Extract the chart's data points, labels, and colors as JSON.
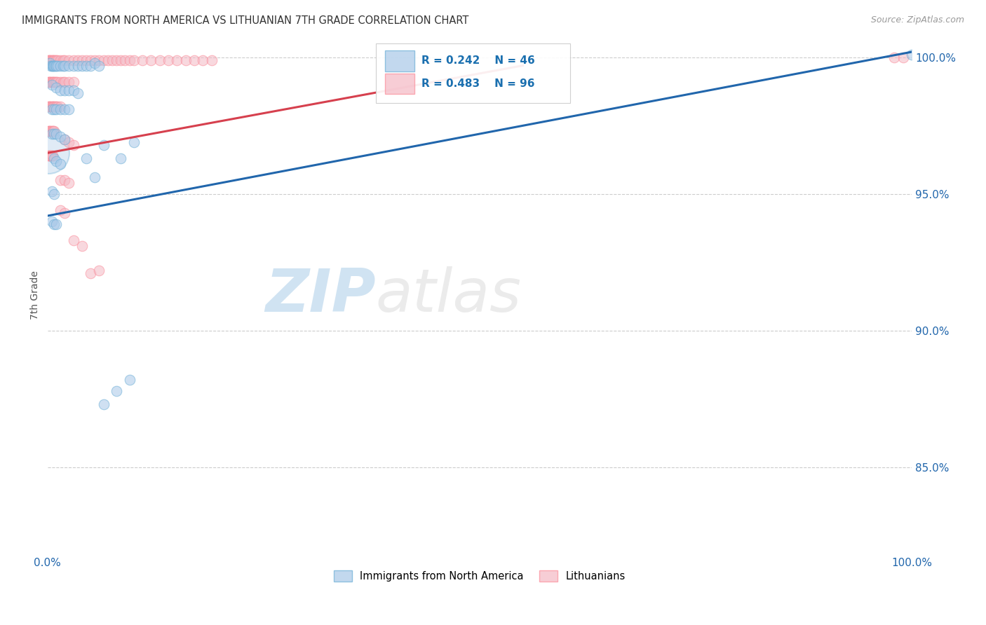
{
  "title": "IMMIGRANTS FROM NORTH AMERICA VS LITHUANIAN 7TH GRADE CORRELATION CHART",
  "source": "Source: ZipAtlas.com",
  "ylabel": "7th Grade",
  "legend_label_blue": "Immigrants from North America",
  "legend_label_pink": "Lithuanians",
  "R_blue": 0.242,
  "N_blue": 46,
  "R_pink": 0.483,
  "N_pink": 96,
  "blue_color": "#a8c8e8",
  "blue_edge_color": "#6baed6",
  "pink_color": "#f4b8c4",
  "pink_edge_color": "#fc8d9a",
  "blue_line_color": "#2166ac",
  "pink_line_color": "#d6404e",
  "watermark_zip": "ZIP",
  "watermark_atlas": "atlas",
  "watermark_color": "#deeaf5",
  "xlim": [
    0.0,
    1.0
  ],
  "ylim": [
    0.818,
    1.008
  ],
  "y_ticks": [
    0.85,
    0.9,
    0.95,
    1.0
  ],
  "y_tick_labels": [
    "85.0%",
    "90.0%",
    "95.0%",
    "100.0%"
  ],
  "x_tick_labels_left": "0.0%",
  "x_tick_labels_right": "100.0%",
  "blue_line_x": [
    0.0,
    1.0
  ],
  "blue_line_y": [
    0.942,
    1.002
  ],
  "pink_line_x": [
    0.0,
    0.55
  ],
  "pink_line_y": [
    0.965,
    0.997
  ],
  "blue_points": [
    [
      0.003,
      0.998
    ],
    [
      0.004,
      0.997
    ],
    [
      0.005,
      0.997
    ],
    [
      0.006,
      0.997
    ],
    [
      0.007,
      0.997
    ],
    [
      0.008,
      0.997
    ],
    [
      0.009,
      0.997
    ],
    [
      0.01,
      0.997
    ],
    [
      0.012,
      0.997
    ],
    [
      0.015,
      0.997
    ],
    [
      0.018,
      0.997
    ],
    [
      0.02,
      0.997
    ],
    [
      0.025,
      0.997
    ],
    [
      0.03,
      0.997
    ],
    [
      0.035,
      0.997
    ],
    [
      0.04,
      0.997
    ],
    [
      0.045,
      0.997
    ],
    [
      0.05,
      0.997
    ],
    [
      0.055,
      0.998
    ],
    [
      0.06,
      0.997
    ],
    [
      0.005,
      0.99
    ],
    [
      0.01,
      0.989
    ],
    [
      0.015,
      0.988
    ],
    [
      0.02,
      0.988
    ],
    [
      0.025,
      0.988
    ],
    [
      0.03,
      0.988
    ],
    [
      0.035,
      0.987
    ],
    [
      0.005,
      0.981
    ],
    [
      0.008,
      0.981
    ],
    [
      0.01,
      0.981
    ],
    [
      0.015,
      0.981
    ],
    [
      0.02,
      0.981
    ],
    [
      0.025,
      0.981
    ],
    [
      0.005,
      0.972
    ],
    [
      0.008,
      0.972
    ],
    [
      0.01,
      0.972
    ],
    [
      0.015,
      0.971
    ],
    [
      0.02,
      0.97
    ],
    [
      0.008,
      0.963
    ],
    [
      0.01,
      0.962
    ],
    [
      0.015,
      0.961
    ],
    [
      0.005,
      0.951
    ],
    [
      0.008,
      0.95
    ],
    [
      0.005,
      0.94
    ],
    [
      0.008,
      0.939
    ],
    [
      0.01,
      0.939
    ],
    [
      1.0,
      1.001
    ]
  ],
  "blue_points_isolated": [
    [
      0.045,
      0.963
    ],
    [
      0.085,
      0.963
    ],
    [
      0.055,
      0.956
    ],
    [
      0.065,
      0.968
    ],
    [
      0.1,
      0.969
    ],
    [
      0.08,
      0.878
    ],
    [
      0.095,
      0.882
    ],
    [
      0.065,
      0.873
    ]
  ],
  "blue_large_circle": [
    0.001,
    0.965
  ],
  "pink_points": [
    [
      0.001,
      0.999
    ],
    [
      0.002,
      0.999
    ],
    [
      0.003,
      0.999
    ],
    [
      0.004,
      0.999
    ],
    [
      0.005,
      0.999
    ],
    [
      0.006,
      0.999
    ],
    [
      0.007,
      0.999
    ],
    [
      0.008,
      0.999
    ],
    [
      0.009,
      0.999
    ],
    [
      0.01,
      0.999
    ],
    [
      0.012,
      0.999
    ],
    [
      0.015,
      0.999
    ],
    [
      0.018,
      0.999
    ],
    [
      0.02,
      0.999
    ],
    [
      0.025,
      0.999
    ],
    [
      0.03,
      0.999
    ],
    [
      0.035,
      0.999
    ],
    [
      0.04,
      0.999
    ],
    [
      0.045,
      0.999
    ],
    [
      0.05,
      0.999
    ],
    [
      0.055,
      0.999
    ],
    [
      0.06,
      0.999
    ],
    [
      0.065,
      0.999
    ],
    [
      0.07,
      0.999
    ],
    [
      0.075,
      0.999
    ],
    [
      0.08,
      0.999
    ],
    [
      0.085,
      0.999
    ],
    [
      0.09,
      0.999
    ],
    [
      0.095,
      0.999
    ],
    [
      0.1,
      0.999
    ],
    [
      0.11,
      0.999
    ],
    [
      0.12,
      0.999
    ],
    [
      0.13,
      0.999
    ],
    [
      0.14,
      0.999
    ],
    [
      0.15,
      0.999
    ],
    [
      0.16,
      0.999
    ],
    [
      0.17,
      0.999
    ],
    [
      0.18,
      0.999
    ],
    [
      0.19,
      0.999
    ],
    [
      0.001,
      0.991
    ],
    [
      0.002,
      0.991
    ],
    [
      0.003,
      0.991
    ],
    [
      0.004,
      0.991
    ],
    [
      0.005,
      0.991
    ],
    [
      0.006,
      0.991
    ],
    [
      0.007,
      0.991
    ],
    [
      0.008,
      0.991
    ],
    [
      0.009,
      0.991
    ],
    [
      0.01,
      0.991
    ],
    [
      0.012,
      0.991
    ],
    [
      0.015,
      0.991
    ],
    [
      0.018,
      0.991
    ],
    [
      0.02,
      0.991
    ],
    [
      0.025,
      0.991
    ],
    [
      0.03,
      0.991
    ],
    [
      0.001,
      0.982
    ],
    [
      0.002,
      0.982
    ],
    [
      0.003,
      0.982
    ],
    [
      0.004,
      0.982
    ],
    [
      0.005,
      0.982
    ],
    [
      0.006,
      0.982
    ],
    [
      0.007,
      0.982
    ],
    [
      0.008,
      0.982
    ],
    [
      0.009,
      0.982
    ],
    [
      0.01,
      0.982
    ],
    [
      0.012,
      0.982
    ],
    [
      0.015,
      0.982
    ],
    [
      0.001,
      0.973
    ],
    [
      0.002,
      0.973
    ],
    [
      0.003,
      0.973
    ],
    [
      0.004,
      0.973
    ],
    [
      0.005,
      0.973
    ],
    [
      0.006,
      0.973
    ],
    [
      0.007,
      0.973
    ],
    [
      0.008,
      0.973
    ],
    [
      0.001,
      0.964
    ],
    [
      0.002,
      0.964
    ],
    [
      0.003,
      0.964
    ],
    [
      0.004,
      0.964
    ],
    [
      0.005,
      0.964
    ],
    [
      0.006,
      0.964
    ],
    [
      0.02,
      0.97
    ],
    [
      0.025,
      0.969
    ],
    [
      0.03,
      0.968
    ],
    [
      0.015,
      0.955
    ],
    [
      0.02,
      0.955
    ],
    [
      0.025,
      0.954
    ],
    [
      0.015,
      0.944
    ],
    [
      0.02,
      0.943
    ],
    [
      0.03,
      0.933
    ],
    [
      0.04,
      0.931
    ],
    [
      0.05,
      0.921
    ],
    [
      0.06,
      0.922
    ],
    [
      0.98,
      1.0
    ],
    [
      0.99,
      1.0
    ]
  ]
}
